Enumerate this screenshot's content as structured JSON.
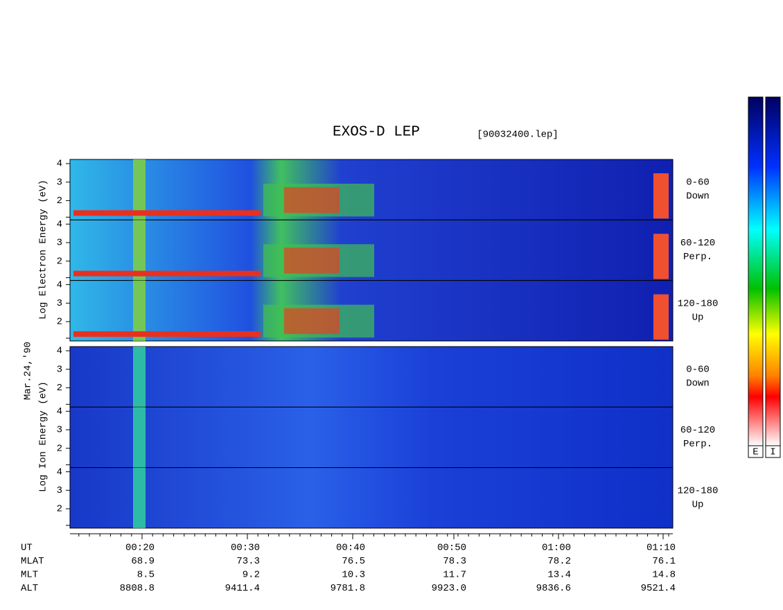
{
  "title": "EXOS-D LEP",
  "file": "[90032400.lep]",
  "date": "Mar.24,'90",
  "electron_axis": "Log  Electron  Energy (eV)",
  "ion_axis": "Log   Ion   Energy (eV)",
  "energy_ticks": [
    "4",
    "3",
    "2"
  ],
  "electron_panels": [
    {
      "angle": "0-60",
      "direction": "Down"
    },
    {
      "angle": "60-120",
      "direction": "Perp."
    },
    {
      "angle": "120-180",
      "direction": "Up"
    }
  ],
  "ion_panels": [
    {
      "angle": "0-60",
      "direction": "Down"
    },
    {
      "angle": "60-120",
      "direction": "Perp."
    },
    {
      "angle": "120-180",
      "direction": "Up"
    }
  ],
  "rows": [
    {
      "name": "UT",
      "values": [
        "00:20",
        "00:30",
        "00:40",
        "00:50",
        "01:00",
        "01:10"
      ]
    },
    {
      "name": "MLAT",
      "values": [
        "68.9",
        "73.3",
        "76.5",
        "78.3",
        "78.2",
        "76.1"
      ]
    },
    {
      "name": "MLT",
      "values": [
        "8.5",
        "9.2",
        "10.3",
        "11.7",
        "13.4",
        "14.8"
      ]
    },
    {
      "name": "ALT",
      "values": [
        "8808.8",
        "9411.4",
        "9781.8",
        "9923.0",
        "9836.6",
        "9521.4"
      ]
    }
  ],
  "colorbar_labels": [
    "E",
    "I"
  ]
}
